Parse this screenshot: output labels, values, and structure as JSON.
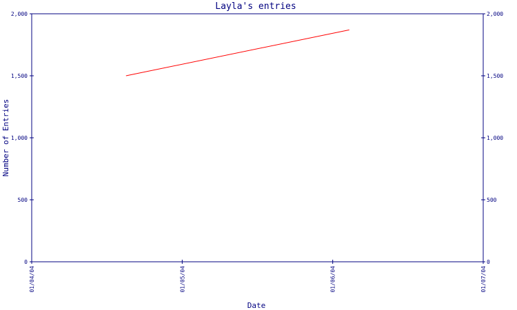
{
  "chart_data": {
    "type": "line",
    "title": "Layla's entries",
    "xlabel": "Date",
    "ylabel": "Number of Entries",
    "x_ticks": [
      "01/04/04",
      "01/05/04",
      "01/06/04",
      "01/07/04"
    ],
    "y_ticks": [
      "0",
      "500",
      "1,000",
      "1,500",
      "2,000"
    ],
    "ylim": [
      0,
      2000
    ],
    "right_axis": true,
    "grid": false,
    "series": [
      {
        "color": "#ff0000",
        "x": [
          "2004-04-20",
          "2004-06-04"
        ],
        "y": [
          1500,
          1870
        ]
      }
    ]
  }
}
